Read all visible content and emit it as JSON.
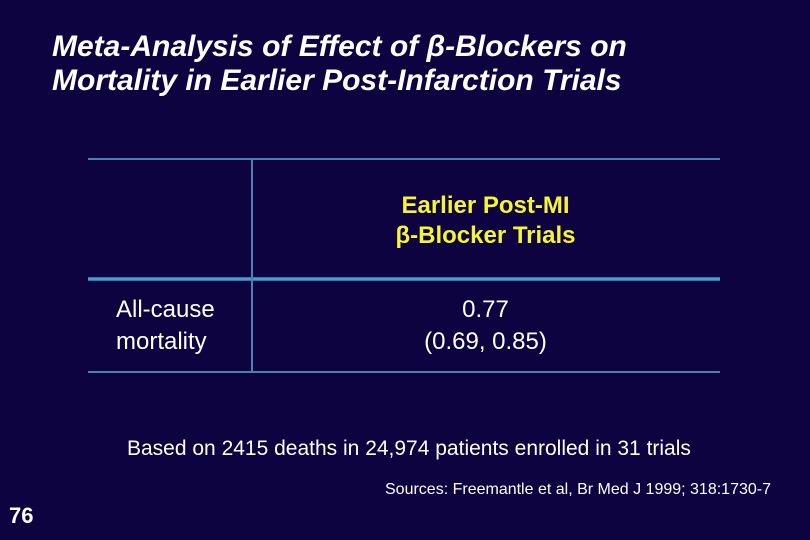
{
  "title": {
    "line1": "Meta-Analysis of Effect of β-Blockers on",
    "line2": "Mortality in Earlier Post-Infarction Trials"
  },
  "table": {
    "col_header": {
      "line1": "Earlier Post-MI",
      "line2": "β-Blocker Trials"
    },
    "rows": [
      {
        "label": {
          "line1": "All-cause",
          "line2": "mortality"
        },
        "value": {
          "line1": "0.77",
          "line2": "(0.69, 0.85)"
        }
      }
    ]
  },
  "chart_data": {
    "type": "table",
    "columns": [
      "",
      "Earlier Post-MI β-Blocker Trials"
    ],
    "rows": [
      [
        "All-cause mortality",
        "0.77 (0.69, 0.85)"
      ]
    ],
    "title": "Meta-Analysis of Effect of β-Blockers on Mortality in Earlier Post-Infarction Trials",
    "note": "Based on 2415 deaths in 24,974 patients enrolled in 31 trials"
  },
  "footnote": "Based on 2415 deaths in 24,974 patients enrolled in 31 trials",
  "source": "Sources: Freemantle et al, Br Med J 1999; 318:1730-7",
  "page_number": "76",
  "colors": {
    "background": "#0d0340",
    "header_yellow": "#f5f533",
    "table_line_blue": "#4a82b2",
    "table_divider_bright": "#55b0e0",
    "text_white": "#ffffff"
  }
}
